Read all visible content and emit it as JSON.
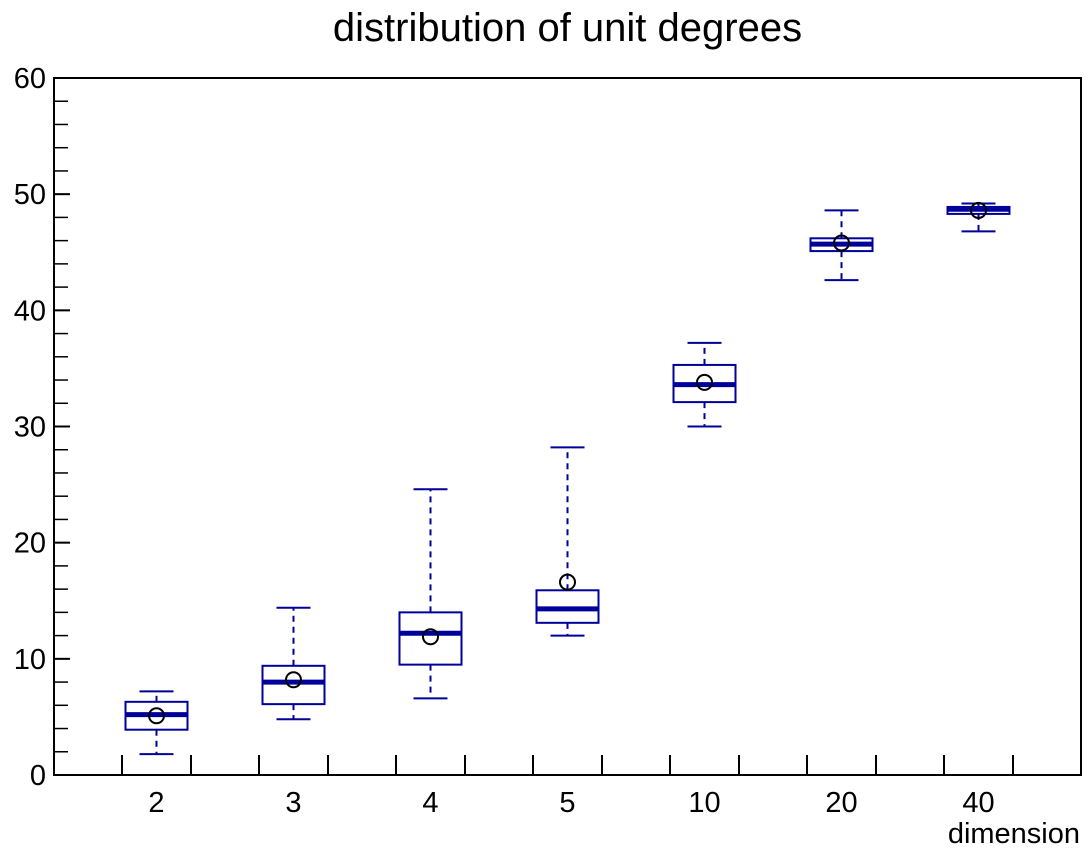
{
  "chart_data": {
    "type": "box",
    "title": "distribution of unit degrees",
    "xlabel": "dimension",
    "ylabel": "",
    "ylim": [
      0,
      60
    ],
    "y_ticks": [
      "0",
      "10",
      "20",
      "30",
      "40",
      "50",
      "60"
    ],
    "categories": [
      "2",
      "3",
      "4",
      "5",
      "10",
      "20",
      "40"
    ],
    "boxes": [
      {
        "category": "2",
        "whisker_low": 1.8,
        "q1": 3.9,
        "median": 5.2,
        "q3": 6.3,
        "whisker_high": 7.2,
        "mean": 5.1
      },
      {
        "category": "3",
        "whisker_low": 4.8,
        "q1": 6.1,
        "median": 8.0,
        "q3": 9.4,
        "whisker_high": 14.4,
        "mean": 8.2
      },
      {
        "category": "4",
        "whisker_low": 6.6,
        "q1": 9.5,
        "median": 12.2,
        "q3": 14.0,
        "whisker_high": 24.6,
        "mean": 11.9
      },
      {
        "category": "5",
        "whisker_low": 12.0,
        "q1": 13.1,
        "median": 14.3,
        "q3": 15.9,
        "whisker_high": 28.2,
        "mean": 16.6
      },
      {
        "category": "10",
        "whisker_low": 30.0,
        "q1": 32.1,
        "median": 33.6,
        "q3": 35.3,
        "whisker_high": 37.2,
        "mean": 33.8
      },
      {
        "category": "20",
        "whisker_low": 42.6,
        "q1": 45.1,
        "median": 45.7,
        "q3": 46.2,
        "whisker_high": 48.6,
        "mean": 45.8
      },
      {
        "category": "40",
        "whisker_low": 46.8,
        "q1": 48.3,
        "median": 48.7,
        "q3": 48.9,
        "whisker_high": 49.2,
        "mean": 48.6
      }
    ],
    "colors": {
      "box": "#00009a",
      "mean_marker": "#000000",
      "axis": "#000000"
    },
    "grid": false
  }
}
